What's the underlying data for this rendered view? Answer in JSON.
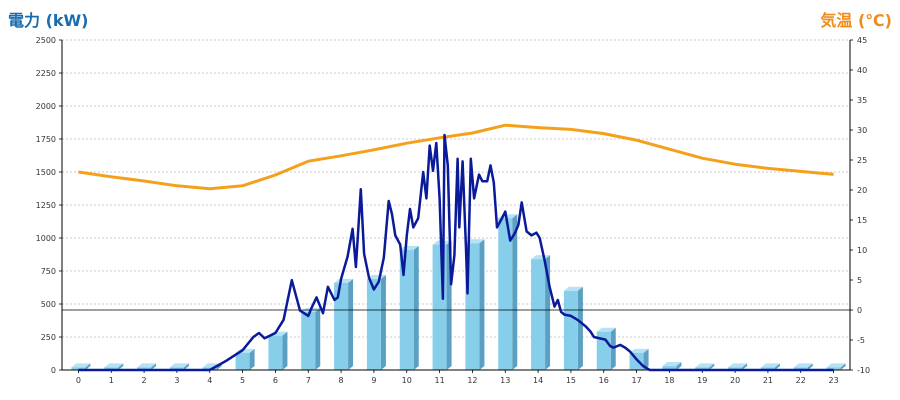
{
  "chart_data": {
    "type": "bar+line",
    "left_axis_title": "電力 (kW)",
    "right_axis_title": "気温 (℃)",
    "left_axis": {
      "min": 0,
      "max": 2500,
      "step": 250,
      "ticks": [
        "0",
        "250",
        "500",
        "750",
        "1000",
        "1250",
        "1500",
        "1750",
        "2000",
        "2250",
        "2500"
      ]
    },
    "right_axis": {
      "min": -10,
      "max": 45,
      "step": 5,
      "ticks": [
        "-10",
        "-5",
        "0",
        "5",
        "10",
        "15",
        "20",
        "25",
        "30",
        "35",
        "40",
        "45"
      ]
    },
    "hours": [
      "0",
      "1",
      "2",
      "3",
      "4",
      "5",
      "6",
      "7",
      "8",
      "9",
      "10",
      "11",
      "12",
      "13",
      "14",
      "15",
      "16",
      "17",
      "18",
      "19",
      "20",
      "21",
      "22",
      "23"
    ],
    "hourly_bars_kw": [
      20,
      20,
      20,
      20,
      20,
      130,
      260,
      440,
      660,
      690,
      910,
      950,
      960,
      1150,
      840,
      600,
      290,
      130,
      30,
      20,
      20,
      20,
      20,
      20
    ],
    "power_line_kw": [
      [
        0,
        0
      ],
      [
        4,
        0
      ],
      [
        4.5,
        70
      ],
      [
        5,
        150
      ],
      [
        5.33,
        250
      ],
      [
        5.5,
        280
      ],
      [
        5.67,
        240
      ],
      [
        5.83,
        260
      ],
      [
        6,
        280
      ],
      [
        6.25,
        380
      ],
      [
        6.5,
        680
      ],
      [
        6.75,
        450
      ],
      [
        7,
        410
      ],
      [
        7.1,
        470
      ],
      [
        7.25,
        550
      ],
      [
        7.45,
        430
      ],
      [
        7.6,
        630
      ],
      [
        7.8,
        530
      ],
      [
        7.9,
        550
      ],
      [
        8,
        690
      ],
      [
        8.2,
        860
      ],
      [
        8.35,
        1070
      ],
      [
        8.45,
        780
      ],
      [
        8.6,
        1370
      ],
      [
        8.7,
        880
      ],
      [
        8.85,
        700
      ],
      [
        9,
        610
      ],
      [
        9.15,
        670
      ],
      [
        9.3,
        850
      ],
      [
        9.45,
        1280
      ],
      [
        9.55,
        1180
      ],
      [
        9.65,
        1020
      ],
      [
        9.8,
        950
      ],
      [
        9.9,
        720
      ],
      [
        10,
        1020
      ],
      [
        10.1,
        1220
      ],
      [
        10.2,
        1080
      ],
      [
        10.35,
        1150
      ],
      [
        10.5,
        1500
      ],
      [
        10.6,
        1300
      ],
      [
        10.7,
        1700
      ],
      [
        10.8,
        1510
      ],
      [
        10.9,
        1720
      ],
      [
        11,
        1300
      ],
      [
        11.1,
        540
      ],
      [
        11.15,
        1780
      ],
      [
        11.25,
        1550
      ],
      [
        11.35,
        650
      ],
      [
        11.45,
        870
      ],
      [
        11.55,
        1600
      ],
      [
        11.6,
        1080
      ],
      [
        11.7,
        1580
      ],
      [
        11.8,
        940
      ],
      [
        11.85,
        580
      ],
      [
        11.95,
        1600
      ],
      [
        12.05,
        1300
      ],
      [
        12.2,
        1480
      ],
      [
        12.3,
        1430
      ],
      [
        12.45,
        1430
      ],
      [
        12.55,
        1550
      ],
      [
        12.65,
        1420
      ],
      [
        12.75,
        1080
      ],
      [
        12.9,
        1150
      ],
      [
        13,
        1200
      ],
      [
        13.15,
        980
      ],
      [
        13.3,
        1040
      ],
      [
        13.4,
        1100
      ],
      [
        13.5,
        1270
      ],
      [
        13.65,
        1050
      ],
      [
        13.8,
        1020
      ],
      [
        13.95,
        1040
      ],
      [
        14.05,
        1000
      ],
      [
        14.2,
        830
      ],
      [
        14.35,
        630
      ],
      [
        14.5,
        480
      ],
      [
        14.6,
        530
      ],
      [
        14.7,
        440
      ],
      [
        14.8,
        420
      ],
      [
        15,
        410
      ],
      [
        15.2,
        380
      ],
      [
        15.45,
        330
      ],
      [
        15.6,
        290
      ],
      [
        15.7,
        250
      ],
      [
        16.05,
        230
      ],
      [
        16.2,
        180
      ],
      [
        16.3,
        170
      ],
      [
        16.5,
        190
      ],
      [
        16.65,
        170
      ],
      [
        16.8,
        140
      ],
      [
        17,
        80
      ],
      [
        17.2,
        30
      ],
      [
        17.4,
        0
      ],
      [
        23,
        0
      ]
    ],
    "temperature_c": [
      [
        0,
        23
      ],
      [
        1,
        22.2
      ],
      [
        2,
        21.5
      ],
      [
        3,
        20.7
      ],
      [
        4,
        20.2
      ],
      [
        5,
        20.7
      ],
      [
        6,
        22.5
      ],
      [
        7,
        24.8
      ],
      [
        8,
        25.7
      ],
      [
        9,
        26.7
      ],
      [
        10,
        27.8
      ],
      [
        11,
        28.7
      ],
      [
        12,
        29.5
      ],
      [
        13,
        30.8
      ],
      [
        14,
        30.4
      ],
      [
        15,
        30.1
      ],
      [
        16,
        29.4
      ],
      [
        17,
        28.3
      ],
      [
        18,
        26.8
      ],
      [
        19,
        25.3
      ],
      [
        20,
        24.3
      ],
      [
        21,
        23.6
      ],
      [
        22,
        23.1
      ],
      [
        23,
        22.6
      ]
    ],
    "colors": {
      "bar_front": "#87ceeb",
      "bar_side": "#5b9fc2",
      "bar_top": "#b5e2f5",
      "power_line": "#0a1a99",
      "temp_line": "#f5a01a",
      "grid": "#bbbbbb",
      "left_title": "#1a6cb0",
      "right_title": "#f08c1e"
    },
    "grid": true
  }
}
